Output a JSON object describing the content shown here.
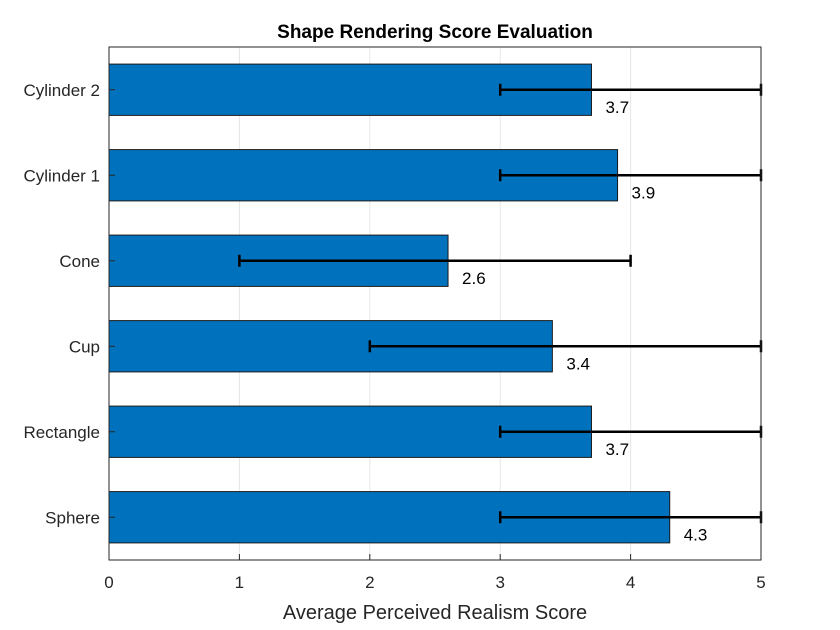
{
  "chart_data": {
    "type": "bar",
    "orientation": "horizontal",
    "title": "Shape Rendering Score Evaluation",
    "xlabel": "Average Perceived Realism Score",
    "ylabel": "",
    "xlim": [
      0,
      5
    ],
    "xticks": [
      0,
      1,
      2,
      3,
      4,
      5
    ],
    "grid": true,
    "categories": [
      "Sphere",
      "Rectangle",
      "Cup",
      "Cone",
      "Cylinder 1",
      "Cylinder 2"
    ],
    "values": [
      4.3,
      3.7,
      3.4,
      2.6,
      3.9,
      3.7
    ],
    "value_labels": [
      "4.3",
      "3.7",
      "3.4",
      "2.6",
      "3.9",
      "3.7"
    ],
    "error_low": [
      3,
      3,
      2,
      1,
      3,
      3
    ],
    "error_high": [
      5,
      5,
      5,
      4,
      5,
      5
    ],
    "bar_color": "#0072BD"
  }
}
